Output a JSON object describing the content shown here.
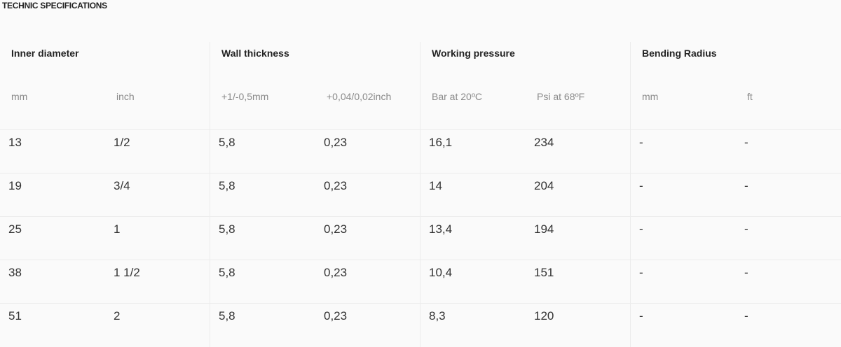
{
  "title": "TECHNIC SPECIFICATIONS",
  "groups": [
    {
      "title": "Inner diameter",
      "subs": [
        "mm",
        "inch"
      ]
    },
    {
      "title": "Wall thickness",
      "subs": [
        "+1/-0,5mm",
        "+0,04/0,02inch"
      ]
    },
    {
      "title": "Working pressure",
      "subs": [
        "Bar at 20ºC",
        "Psi at 68ºF"
      ]
    },
    {
      "title": "Bending Radius",
      "subs": [
        "mm",
        "ft"
      ]
    }
  ],
  "rows": [
    [
      "13",
      "1/2",
      "5,8",
      "0,23",
      "16,1",
      "234",
      "-",
      "-"
    ],
    [
      "19",
      "3/4",
      "5,8",
      "0,23",
      "14",
      "204",
      "-",
      "-"
    ],
    [
      "25",
      "1",
      "5,8",
      "0,23",
      "13,4",
      "194",
      "-",
      "-"
    ],
    [
      "38",
      "1 1/2",
      "5,8",
      "0,23",
      "10,4",
      "151",
      "-",
      "-"
    ],
    [
      "51",
      "2",
      "5,8",
      "0,23",
      "8,3",
      "120",
      "-",
      "-"
    ]
  ]
}
